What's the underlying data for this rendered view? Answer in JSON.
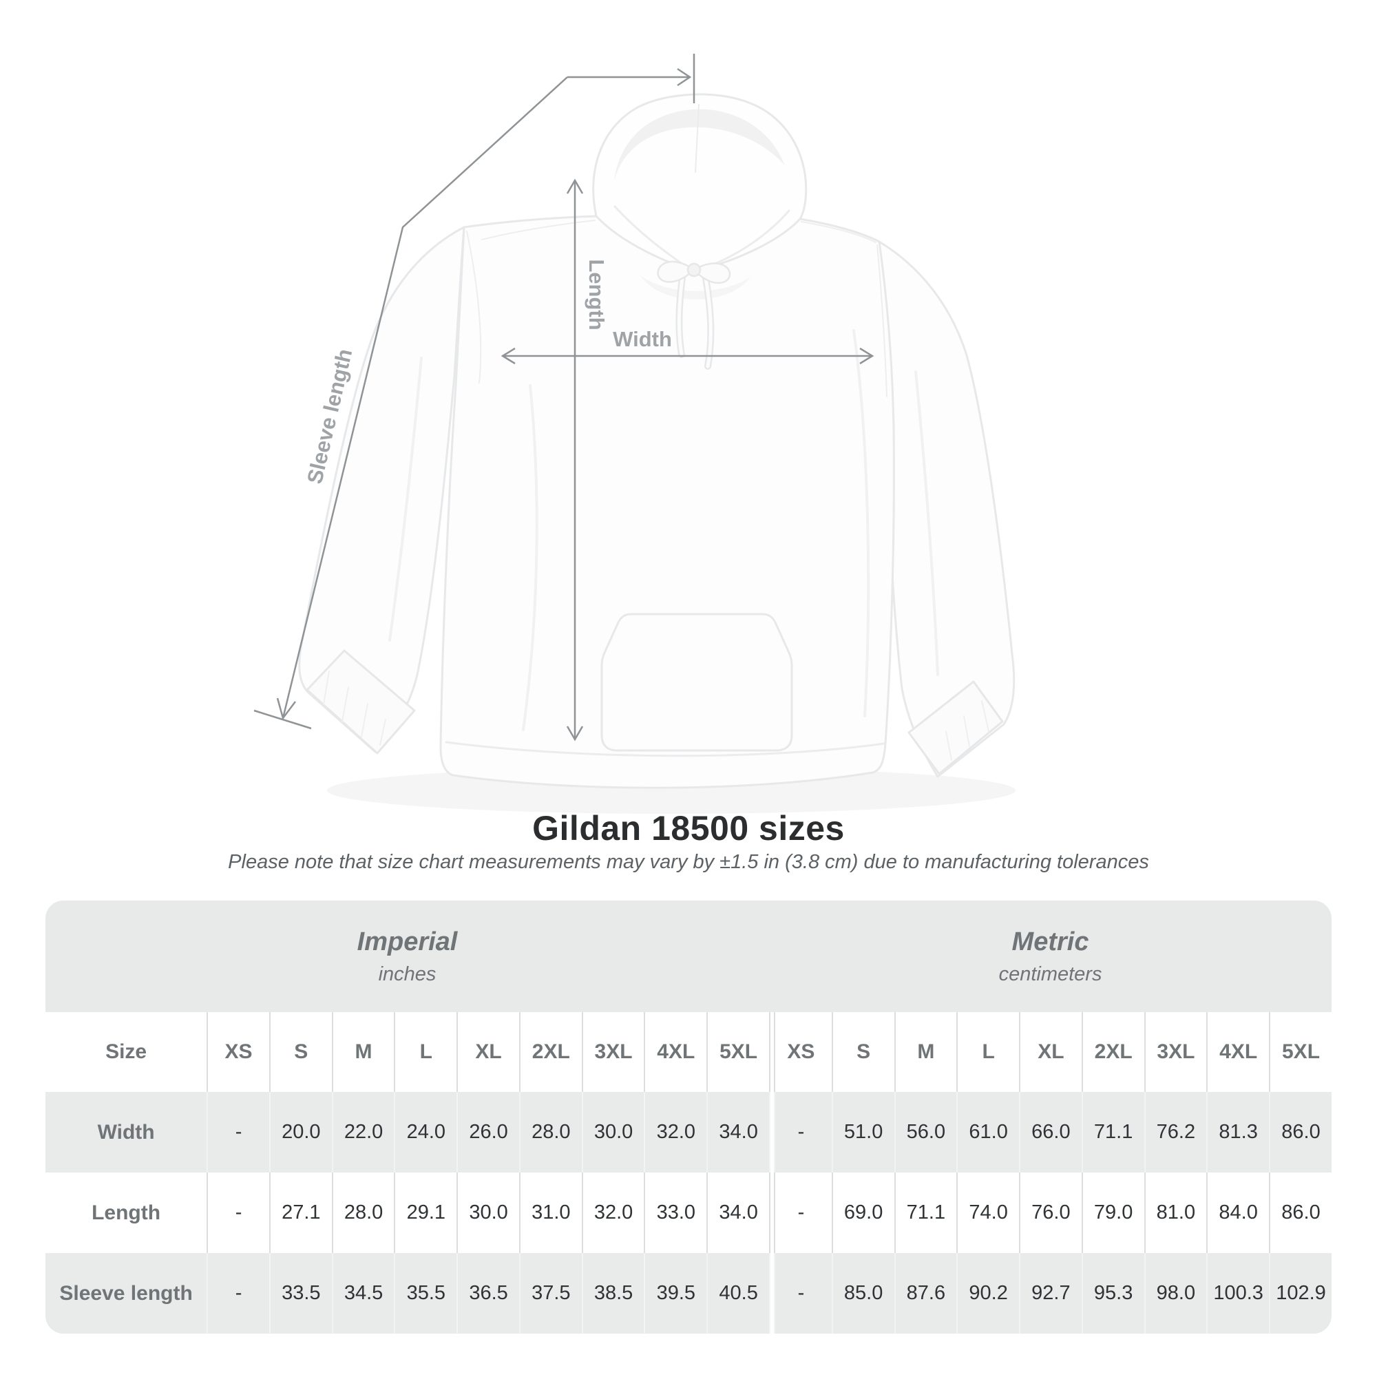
{
  "diagram": {
    "labels": {
      "width": "Width",
      "length": "Length",
      "sleeve": "Sleeve length"
    },
    "line_color": "#8f9396",
    "label_color": "#9fa3a6",
    "garment": "white hooded sweatshirt (front view)"
  },
  "title": "Gildan 18500 sizes",
  "subtitle": "Please note that size chart measurements may vary by ±1.5 in (3.8 cm) due to manufacturing tolerances",
  "table": {
    "size_header": "Size",
    "groups": [
      {
        "label": "Imperial",
        "unit": "inches"
      },
      {
        "label": "Metric",
        "unit": "centimeters"
      }
    ],
    "sizes": [
      "XS",
      "S",
      "M",
      "L",
      "XL",
      "2XL",
      "3XL",
      "4XL",
      "5XL"
    ],
    "rows": [
      {
        "label": "Width",
        "imperial": [
          "-",
          "20.0",
          "22.0",
          "24.0",
          "26.0",
          "28.0",
          "30.0",
          "32.0",
          "34.0"
        ],
        "metric": [
          "-",
          "51.0",
          "56.0",
          "61.0",
          "66.0",
          "71.1",
          "76.2",
          "81.3",
          "86.0"
        ]
      },
      {
        "label": "Length",
        "imperial": [
          "-",
          "27.1",
          "28.0",
          "29.1",
          "30.0",
          "31.0",
          "32.0",
          "33.0",
          "34.0"
        ],
        "metric": [
          "-",
          "69.0",
          "71.1",
          "74.0",
          "76.0",
          "79.0",
          "81.0",
          "84.0",
          "86.0"
        ]
      },
      {
        "label": "Sleeve length",
        "imperial": [
          "-",
          "33.5",
          "34.5",
          "35.5",
          "36.5",
          "37.5",
          "38.5",
          "39.5",
          "40.5"
        ],
        "metric": [
          "-",
          "85.0",
          "87.6",
          "90.2",
          "92.7",
          "95.3",
          "98.0",
          "100.3",
          "102.9"
        ]
      }
    ]
  },
  "colors": {
    "title_text": "#2b2d2e",
    "subtitle_text": "#5b6164",
    "band_background": "#e8e9e9",
    "stripe_row_background": "#e9eaea",
    "white_row_background": "#ffffff",
    "header_text": "#6f7477",
    "cell_text": "#2f3335",
    "separator": "#dcdddd",
    "measurement_line": "#8f9396",
    "measurement_label": "#9fa3a6"
  },
  "chart_data": {
    "type": "table",
    "title": "Gildan 18500 sizes",
    "note": "Please note that size chart measurements may vary by ±1.5 in (3.8 cm) due to manufacturing tolerances",
    "columns": [
      "XS",
      "S",
      "M",
      "L",
      "XL",
      "2XL",
      "3XL",
      "4XL",
      "5XL"
    ],
    "units": [
      "inches",
      "centimeters"
    ],
    "rows": [
      {
        "label": "Width",
        "inches": [
          null,
          20.0,
          22.0,
          24.0,
          26.0,
          28.0,
          30.0,
          32.0,
          34.0
        ],
        "centimeters": [
          null,
          51.0,
          56.0,
          61.0,
          66.0,
          71.1,
          76.2,
          81.3,
          86.0
        ]
      },
      {
        "label": "Length",
        "inches": [
          null,
          27.1,
          28.0,
          29.1,
          30.0,
          31.0,
          32.0,
          33.0,
          34.0
        ],
        "centimeters": [
          null,
          69.0,
          71.1,
          74.0,
          76.0,
          79.0,
          81.0,
          84.0,
          86.0
        ]
      },
      {
        "label": "Sleeve length",
        "inches": [
          null,
          33.5,
          34.5,
          35.5,
          36.5,
          37.5,
          38.5,
          39.5,
          40.5
        ],
        "centimeters": [
          null,
          85.0,
          87.6,
          90.2,
          92.7,
          95.3,
          98.0,
          100.3,
          102.9
        ]
      }
    ],
    "diagram_annotations": [
      "Width",
      "Length",
      "Sleeve length"
    ]
  }
}
